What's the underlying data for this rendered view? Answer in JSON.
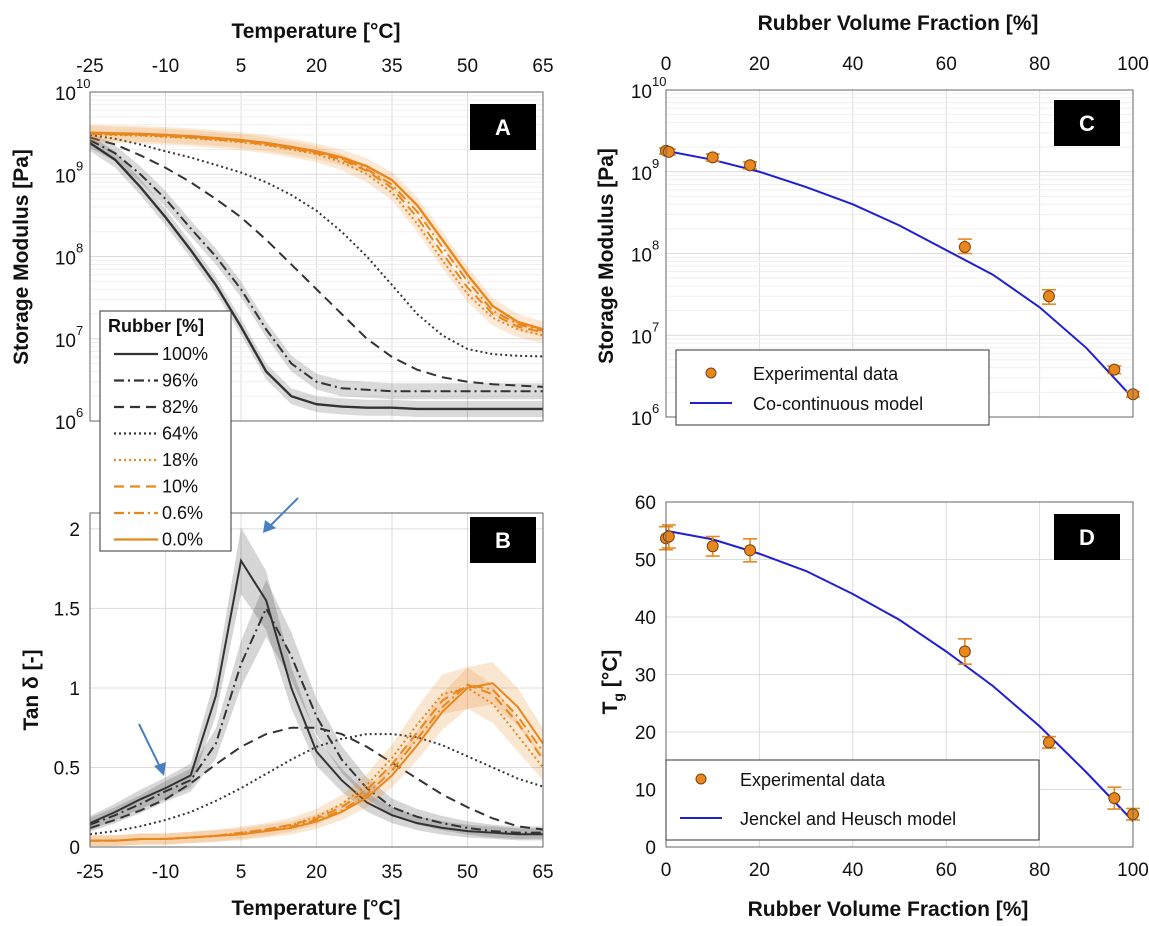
{
  "figure": {
    "panel_a": {
      "label": "A"
    },
    "panel_b": {
      "label": "B"
    },
    "panel_c": {
      "label": "C"
    },
    "panel_d": {
      "label": "D"
    }
  },
  "chart_data": [
    {
      "id": "A",
      "type": "line",
      "xlabel": "Temperature [°C]",
      "ylabel": "Storage Modulus [Pa]",
      "xlim": [
        -25,
        65
      ],
      "ylim": [
        1000000,
        10000000000
      ],
      "yscale": "log",
      "xticks": [
        "-25",
        "-10",
        "5",
        "20",
        "35",
        "50",
        "65"
      ],
      "yticks": [
        6,
        7,
        8,
        9,
        10
      ],
      "ytick_labels": [
        "10",
        "10",
        "10",
        "10",
        "10"
      ],
      "grid": true,
      "legend": {
        "title": "Rubber [%]",
        "placement": "bottom-left"
      },
      "x": [
        -25,
        -20,
        -15,
        -10,
        -5,
        0,
        5,
        10,
        15,
        20,
        25,
        30,
        35,
        40,
        45,
        50,
        55,
        60,
        65
      ],
      "series": [
        {
          "name": "100%",
          "color": "#333333",
          "dash": "solid",
          "values": [
            2400000000,
            1500000000,
            700000000,
            300000000,
            120000000,
            45000000,
            14000000,
            4000000,
            2000000,
            1600000,
            1500000,
            1450000,
            1450000,
            1400000,
            1400000,
            1400000,
            1400000,
            1400000,
            1400000
          ]
        },
        {
          "name": "96%",
          "color": "#333333",
          "dash": "dashdot",
          "values": [
            2600000000,
            1800000000,
            1000000000,
            500000000,
            220000000,
            100000000,
            40000000,
            13000000,
            5000000,
            3000000,
            2500000,
            2400000,
            2300000,
            2300000,
            2300000,
            2300000,
            2300000,
            2300000,
            2300000
          ]
        },
        {
          "name": "82%",
          "color": "#333333",
          "dash": "dashed",
          "values": [
            2800000000,
            2300000000,
            1700000000,
            1200000000,
            800000000,
            500000000,
            300000000,
            160000000,
            80000000,
            40000000,
            20000000,
            10000000,
            6000000,
            4200000,
            3400000,
            3000000,
            2800000,
            2700000,
            2600000
          ]
        },
        {
          "name": "64%",
          "color": "#333333",
          "dash": "dotted",
          "values": [
            3000000000,
            2700000000,
            2300000000,
            1900000000,
            1600000000,
            1300000000,
            1050000000,
            800000000,
            560000000,
            360000000,
            200000000,
            100000000,
            45000000,
            20000000,
            11000000,
            7500000,
            6500000,
            6200000,
            6100000
          ]
        },
        {
          "name": "18%",
          "color": "#e8871e",
          "dash": "dotted",
          "values": [
            3100000000,
            3000000000,
            2950000000,
            2850000000,
            2750000000,
            2600000000,
            2450000000,
            2250000000,
            2000000000,
            1750000000,
            1400000000,
            1000000000,
            600000000,
            250000000,
            90000000,
            35000000,
            18000000,
            13000000,
            11000000
          ]
        },
        {
          "name": "10%",
          "color": "#e8871e",
          "dash": "dashed",
          "values": [
            3100000000,
            3050000000,
            3000000000,
            2900000000,
            2800000000,
            2650000000,
            2500000000,
            2300000000,
            2050000000,
            1800000000,
            1500000000,
            1100000000,
            680000000,
            300000000,
            110000000,
            42000000,
            20000000,
            14000000,
            12000000
          ]
        },
        {
          "name": "0.6%",
          "color": "#e8871e",
          "dash": "dashdot",
          "values": [
            3150000000,
            3100000000,
            3050000000,
            2950000000,
            2850000000,
            2700000000,
            2550000000,
            2350000000,
            2100000000,
            1850000000,
            1550000000,
            1150000000,
            750000000,
            350000000,
            130000000,
            50000000,
            22000000,
            15000000,
            12500000
          ]
        },
        {
          "name": "0.0%",
          "color": "#e8871e",
          "dash": "solid",
          "values": [
            3200000000,
            3150000000,
            3100000000,
            3000000000,
            2900000000,
            2750000000,
            2600000000,
            2400000000,
            2150000000,
            1900000000,
            1600000000,
            1250000000,
            850000000,
            420000000,
            160000000,
            60000000,
            25000000,
            16000000,
            13000000
          ]
        }
      ]
    },
    {
      "id": "B",
      "type": "line",
      "xlabel": "Temperature [°C]",
      "ylabel": "Tan δ [-]",
      "xlim": [
        -25,
        65
      ],
      "ylim": [
        0,
        2.1
      ],
      "xticks": [
        "-25",
        "-10",
        "5",
        "20",
        "35",
        "50",
        "65"
      ],
      "yticks": [
        "0",
        "0.5",
        "1",
        "1.5",
        "2"
      ],
      "grid": true,
      "x": [
        -25,
        -20,
        -15,
        -10,
        -5,
        0,
        5,
        10,
        15,
        20,
        25,
        30,
        35,
        40,
        45,
        50,
        55,
        60,
        65
      ],
      "series": [
        {
          "name": "100%",
          "color": "#333333",
          "dash": "solid",
          "values": [
            0.15,
            0.22,
            0.3,
            0.37,
            0.45,
            0.95,
            1.8,
            1.55,
            1.0,
            0.6,
            0.42,
            0.28,
            0.2,
            0.15,
            0.12,
            0.1,
            0.09,
            0.08,
            0.08
          ]
        },
        {
          "name": "96%",
          "color": "#333333",
          "dash": "dashdot",
          "values": [
            0.14,
            0.2,
            0.27,
            0.35,
            0.42,
            0.65,
            1.15,
            1.5,
            1.2,
            0.82,
            0.55,
            0.37,
            0.25,
            0.19,
            0.15,
            0.12,
            0.1,
            0.09,
            0.09
          ]
        },
        {
          "name": "82%",
          "color": "#333333",
          "dash": "dashed",
          "values": [
            0.12,
            0.17,
            0.23,
            0.3,
            0.4,
            0.52,
            0.63,
            0.71,
            0.75,
            0.75,
            0.71,
            0.63,
            0.53,
            0.43,
            0.33,
            0.25,
            0.18,
            0.13,
            0.11
          ]
        },
        {
          "name": "64%",
          "color": "#333333",
          "dash": "dotted",
          "values": [
            0.08,
            0.1,
            0.13,
            0.17,
            0.22,
            0.29,
            0.37,
            0.46,
            0.55,
            0.63,
            0.68,
            0.71,
            0.71,
            0.69,
            0.64,
            0.57,
            0.5,
            0.43,
            0.38
          ]
        },
        {
          "name": "18%",
          "color": "#e8871e",
          "dash": "dotted",
          "values": [
            0.04,
            0.04,
            0.05,
            0.05,
            0.06,
            0.07,
            0.09,
            0.11,
            0.14,
            0.19,
            0.27,
            0.39,
            0.56,
            0.77,
            0.96,
            1.0,
            0.9,
            0.7,
            0.5
          ]
        },
        {
          "name": "10%",
          "color": "#e8871e",
          "dash": "dashed",
          "values": [
            0.04,
            0.04,
            0.05,
            0.05,
            0.06,
            0.07,
            0.09,
            0.11,
            0.14,
            0.18,
            0.25,
            0.36,
            0.52,
            0.72,
            0.92,
            1.02,
            0.96,
            0.78,
            0.55
          ]
        },
        {
          "name": "0.6%",
          "color": "#e8871e",
          "dash": "dashdot",
          "values": [
            0.04,
            0.04,
            0.05,
            0.05,
            0.06,
            0.07,
            0.08,
            0.1,
            0.13,
            0.17,
            0.23,
            0.33,
            0.48,
            0.68,
            0.88,
            1.02,
            0.99,
            0.82,
            0.6
          ]
        },
        {
          "name": "0.0%",
          "color": "#e8871e",
          "dash": "solid",
          "values": [
            0.04,
            0.04,
            0.05,
            0.05,
            0.06,
            0.07,
            0.08,
            0.1,
            0.12,
            0.16,
            0.22,
            0.31,
            0.45,
            0.64,
            0.85,
            1.0,
            1.03,
            0.88,
            0.65
          ]
        }
      ]
    },
    {
      "id": "C",
      "type": "scatter",
      "xlabel": "Rubber Volume Fraction [%]",
      "ylabel": "Storage Modulus [Pa]",
      "xlim": [
        0,
        100
      ],
      "ylim": [
        1000000,
        10000000000
      ],
      "yscale": "log",
      "xticks": [
        "0",
        "20",
        "40",
        "60",
        "80",
        "100"
      ],
      "yticks": [
        6,
        7,
        8,
        9,
        10
      ],
      "ytick_labels": [
        "10",
        "10",
        "10",
        "10",
        "10"
      ],
      "grid": true,
      "legend": {
        "entries": [
          "Experimental data",
          "Co-continuous model"
        ],
        "placement": "bottom-left"
      },
      "series": [
        {
          "name": "Experimental data",
          "color": "#e8871e",
          "x": [
            0,
            0.6,
            10,
            18,
            64,
            82,
            96,
            100
          ],
          "y": [
            1800000000,
            1750000000,
            1500000000,
            1200000000,
            120000000,
            30000000,
            3800000,
            1900000
          ],
          "err_low": [
            1650000000,
            1600000000,
            1350000000,
            1080000000,
            100000000,
            24000000,
            3400000,
            1750000
          ],
          "err_high": [
            1950000000,
            1900000000,
            1650000000,
            1320000000,
            150000000,
            36000000,
            4200000,
            2050000
          ]
        },
        {
          "name": "Co-continuous model",
          "color": "#1f1fd6",
          "x": [
            0,
            10,
            20,
            30,
            40,
            50,
            60,
            70,
            80,
            90,
            100
          ],
          "y": [
            1800000000,
            1400000000,
            1000000000,
            650000000,
            400000000,
            220000000,
            110000000,
            55000000,
            22000000,
            7000000,
            1700000
          ]
        }
      ]
    },
    {
      "id": "D",
      "type": "scatter",
      "xlabel": "Rubber Volume Fraction [%]",
      "ylabel": "T",
      "ylabel_sub": "g",
      "ylabel_suffix": " [°C]",
      "xlim": [
        0,
        100
      ],
      "ylim": [
        0,
        60
      ],
      "xticks": [
        "0",
        "20",
        "40",
        "60",
        "80",
        "100"
      ],
      "yticks": [
        "0",
        "10",
        "20",
        "30",
        "40",
        "50",
        "60"
      ],
      "grid": true,
      "legend": {
        "entries": [
          "Experimental data",
          "Jenckel and Heusch model"
        ],
        "placement": "bottom-left"
      },
      "series": [
        {
          "name": "Experimental data",
          "color": "#e8871e",
          "x": [
            0,
            0.6,
            10,
            18,
            64,
            82,
            96,
            100
          ],
          "y": [
            53.7,
            54.0,
            52.3,
            51.6,
            34.0,
            18.2,
            8.5,
            5.7
          ],
          "err_low": [
            51.7,
            52.0,
            50.6,
            49.6,
            31.8,
            17.2,
            6.6,
            4.7
          ],
          "err_high": [
            55.7,
            56.0,
            54.0,
            53.6,
            36.2,
            19.2,
            10.4,
            6.7
          ]
        },
        {
          "name": "Jenckel and Heusch model",
          "color": "#1f1fd6",
          "x": [
            0,
            10,
            20,
            30,
            40,
            50,
            60,
            70,
            80,
            90,
            100
          ],
          "y": [
            55,
            53.5,
            51,
            48,
            44,
            39.5,
            34,
            28,
            21,
            13,
            4.5
          ]
        }
      ]
    }
  ]
}
